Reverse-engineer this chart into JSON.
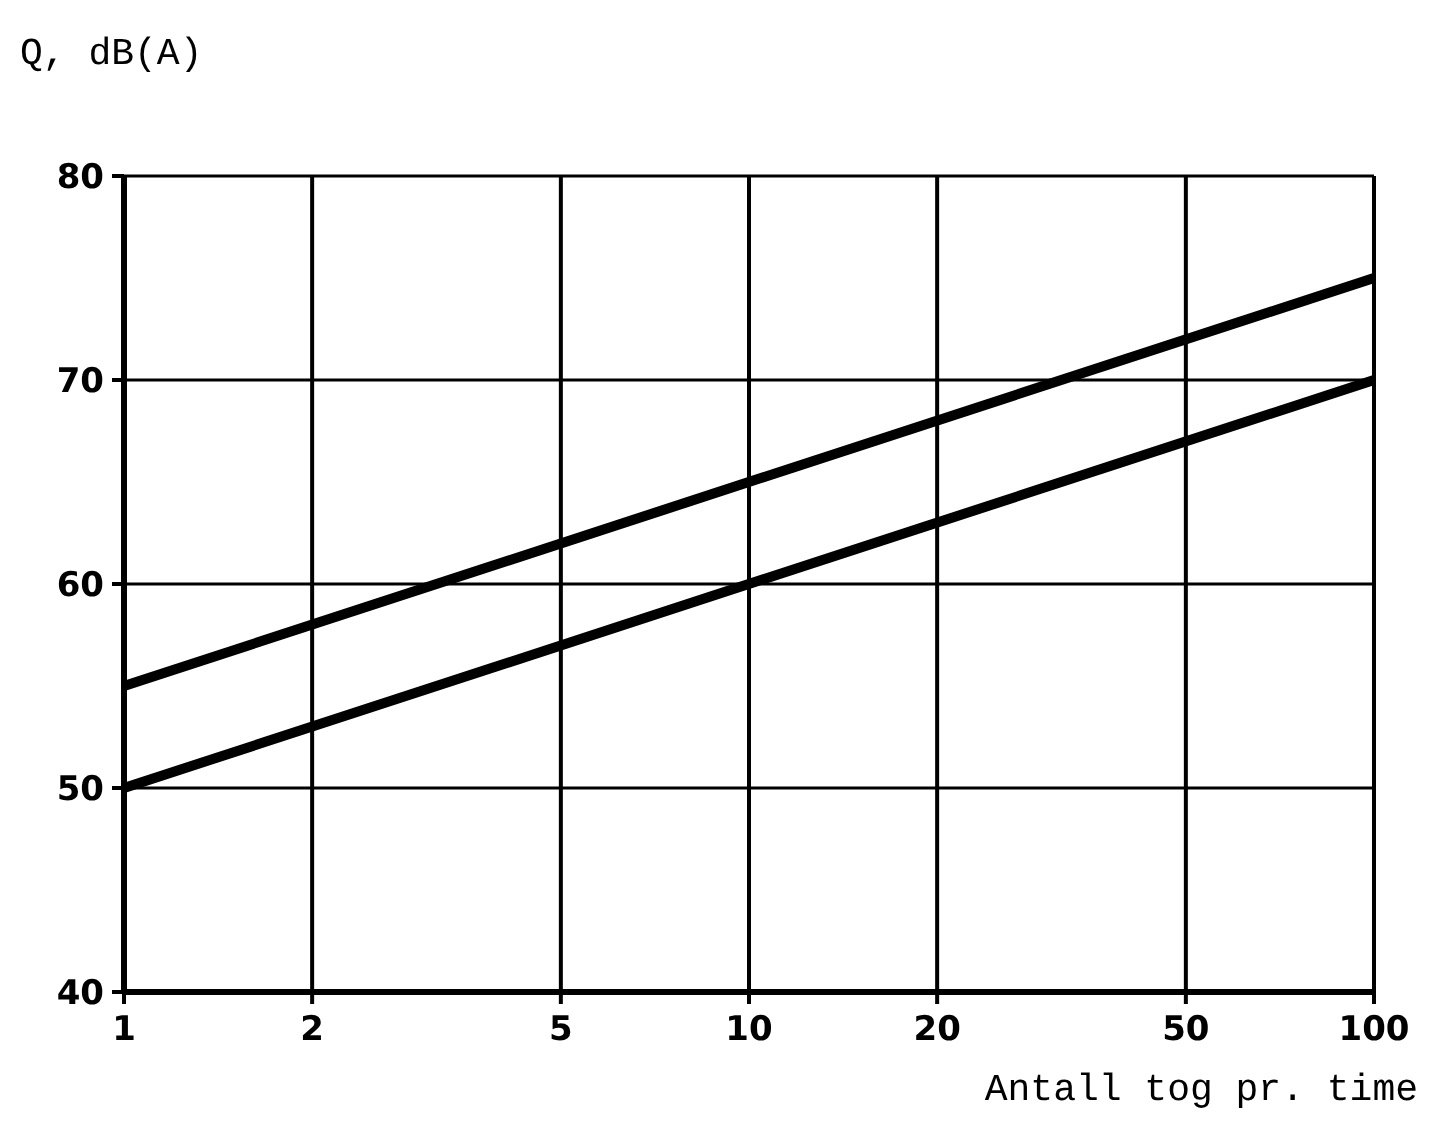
{
  "chart_data": {
    "type": "line",
    "ylabel": "Q, dB(A)",
    "xlabel": "Antall tog pr. time",
    "log": "x",
    "x": [
      1,
      100
    ],
    "series": [
      {
        "color": "#000000",
        "values": [
          55,
          75
        ]
      },
      {
        "color": "#000000",
        "values": [
          50,
          70
        ]
      }
    ],
    "xlim": [
      1,
      100
    ],
    "xticks": [
      1,
      2,
      5,
      10,
      20,
      50,
      100
    ],
    "ylim": [
      40,
      80
    ],
    "yticks": [
      40,
      50,
      60,
      70,
      80
    ],
    "grid": true,
    "marker": "none",
    "line_style": "solid"
  }
}
